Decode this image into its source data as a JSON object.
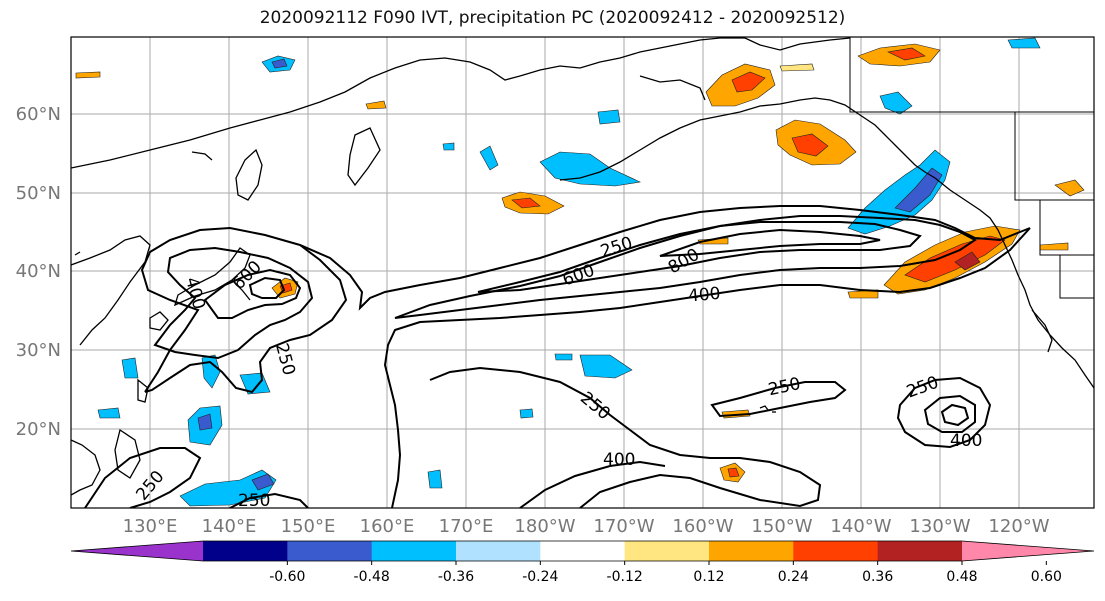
{
  "title": "2020092112 F090 IVT, precipitation PC (2020092412 - 2020092512)",
  "lat_labels": [
    "60°N",
    "50°N",
    "40°N",
    "30°N",
    "20°N"
  ],
  "lon_labels": [
    "130°E",
    "140°E",
    "150°E",
    "160°E",
    "170°E",
    "180°W",
    "170°W",
    "160°W",
    "150°W",
    "140°W",
    "130°W",
    "120°W"
  ],
  "contour_labels": [
    "250",
    "600",
    "800",
    "400",
    "400",
    "600",
    "250",
    "250",
    "250",
    "400",
    "250",
    "400",
    "250"
  ],
  "colorbar": {
    "tick_labels": [
      "-0.60",
      "-0.48",
      "-0.36",
      "-0.24",
      "-0.12",
      "0.12",
      "0.24",
      "0.36",
      "0.48",
      "0.60"
    ],
    "colors": [
      "#9933cc",
      "#00008b",
      "#3a5bcd",
      "#00bfff",
      "#b0e2ff",
      "#ffffff",
      "#ffe680",
      "#ffa500",
      "#ff4000",
      "#b22222",
      "#ff88aa"
    ]
  },
  "colors": {
    "contour": "#000000",
    "coast": "#000000",
    "grid": "#aaaaaa",
    "axis_text": "#777777"
  }
}
